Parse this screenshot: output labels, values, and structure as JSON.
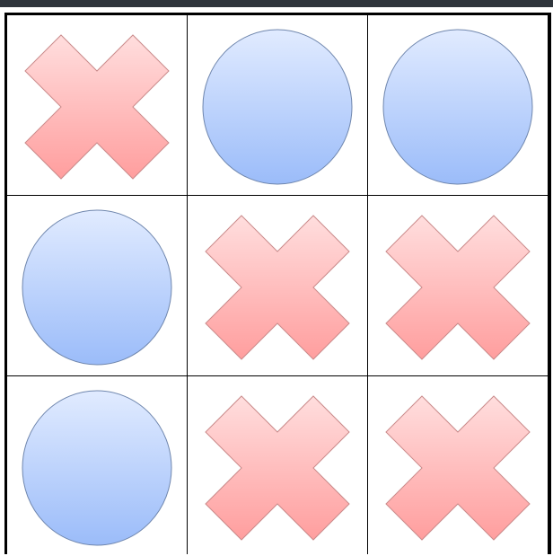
{
  "game": {
    "board": [
      [
        "X",
        "O",
        "O"
      ],
      [
        "O",
        "X",
        "X"
      ],
      [
        "O",
        "X",
        "X"
      ]
    ],
    "icons": {
      "X": "cross-mark-icon",
      "O": "circle-mark-icon"
    },
    "colors": {
      "x_light": "#ffdede",
      "x_dark": "#ff9e9e",
      "x_stroke": "#c98a8a",
      "o_light": "#e1ebff",
      "o_dark": "#9bbcf9",
      "o_stroke": "#6f86ad",
      "grid": "#000000",
      "top_bar": "#2f353c"
    }
  }
}
